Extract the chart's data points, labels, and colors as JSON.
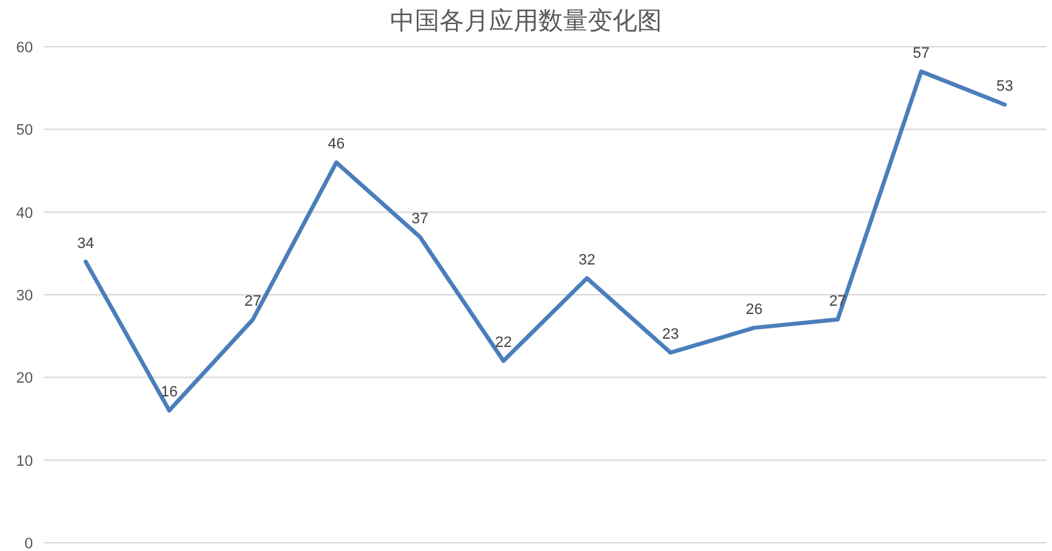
{
  "chart_data": {
    "type": "line",
    "title": "中国各月应用数量变化图",
    "categories": [
      null,
      null,
      null,
      null,
      null,
      null,
      null,
      null,
      null,
      null,
      null,
      null
    ],
    "values": [
      34,
      16,
      27,
      46,
      37,
      22,
      32,
      23,
      26,
      27,
      57,
      53
    ],
    "color": "#4a7ebb",
    "ylim": [
      0,
      60
    ],
    "yticks": [
      0,
      10,
      20,
      30,
      40,
      50,
      60
    ],
    "grid": "y",
    "data_labels": true
  }
}
